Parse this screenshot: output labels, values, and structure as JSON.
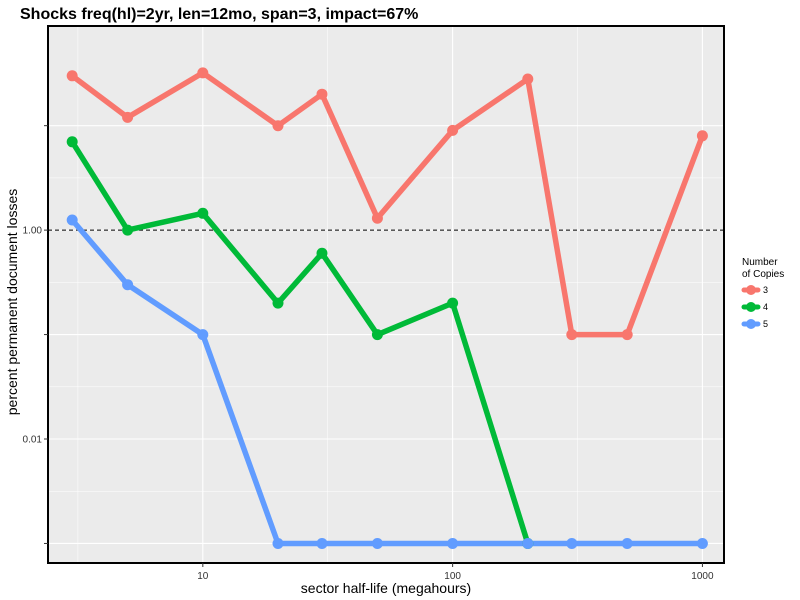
{
  "chart_data": {
    "type": "line",
    "title": "Shocks freq(hl)=2yr, len=12mo, span=3, impact=67%",
    "xlabel": "sector half-life (megahours)",
    "ylabel": "percent permanent document losses",
    "x_scale": "log",
    "y_scale": "log",
    "xlim": [
      2.4,
      1220
    ],
    "ylim": [
      0.00065,
      90
    ],
    "x_ticks": [
      10,
      100,
      1000
    ],
    "x_tick_labels": [
      "10",
      "100",
      "1000"
    ],
    "y_ticks": [
      0.001,
      0.01,
      0.1,
      1,
      10
    ],
    "y_tick_labels": [
      "",
      "0.01",
      "",
      "1.00",
      ""
    ],
    "reference_line": {
      "y": 1,
      "style": "dashed"
    },
    "grid": true,
    "legend": {
      "title_lines": [
        "Number",
        "of Copies"
      ],
      "position": "right"
    },
    "x": [
      3,
      5,
      10,
      20,
      30,
      50,
      100,
      200,
      300,
      500,
      1000
    ],
    "series": [
      {
        "name": "3",
        "color": "#F8766D",
        "values": [
          30,
          12,
          32,
          10,
          20,
          1.3,
          9,
          28,
          0.1,
          0.1,
          8
        ]
      },
      {
        "name": "4",
        "color": "#00BA38",
        "values": [
          7,
          1,
          1.45,
          0.2,
          0.6,
          0.1,
          0.2,
          0.001,
          null,
          null,
          null
        ]
      },
      {
        "name": "5",
        "color": "#619CFF",
        "values": [
          1.25,
          0.3,
          0.1,
          0.001,
          0.001,
          0.001,
          0.001,
          0.001,
          0.001,
          0.001,
          0.001
        ]
      }
    ]
  }
}
